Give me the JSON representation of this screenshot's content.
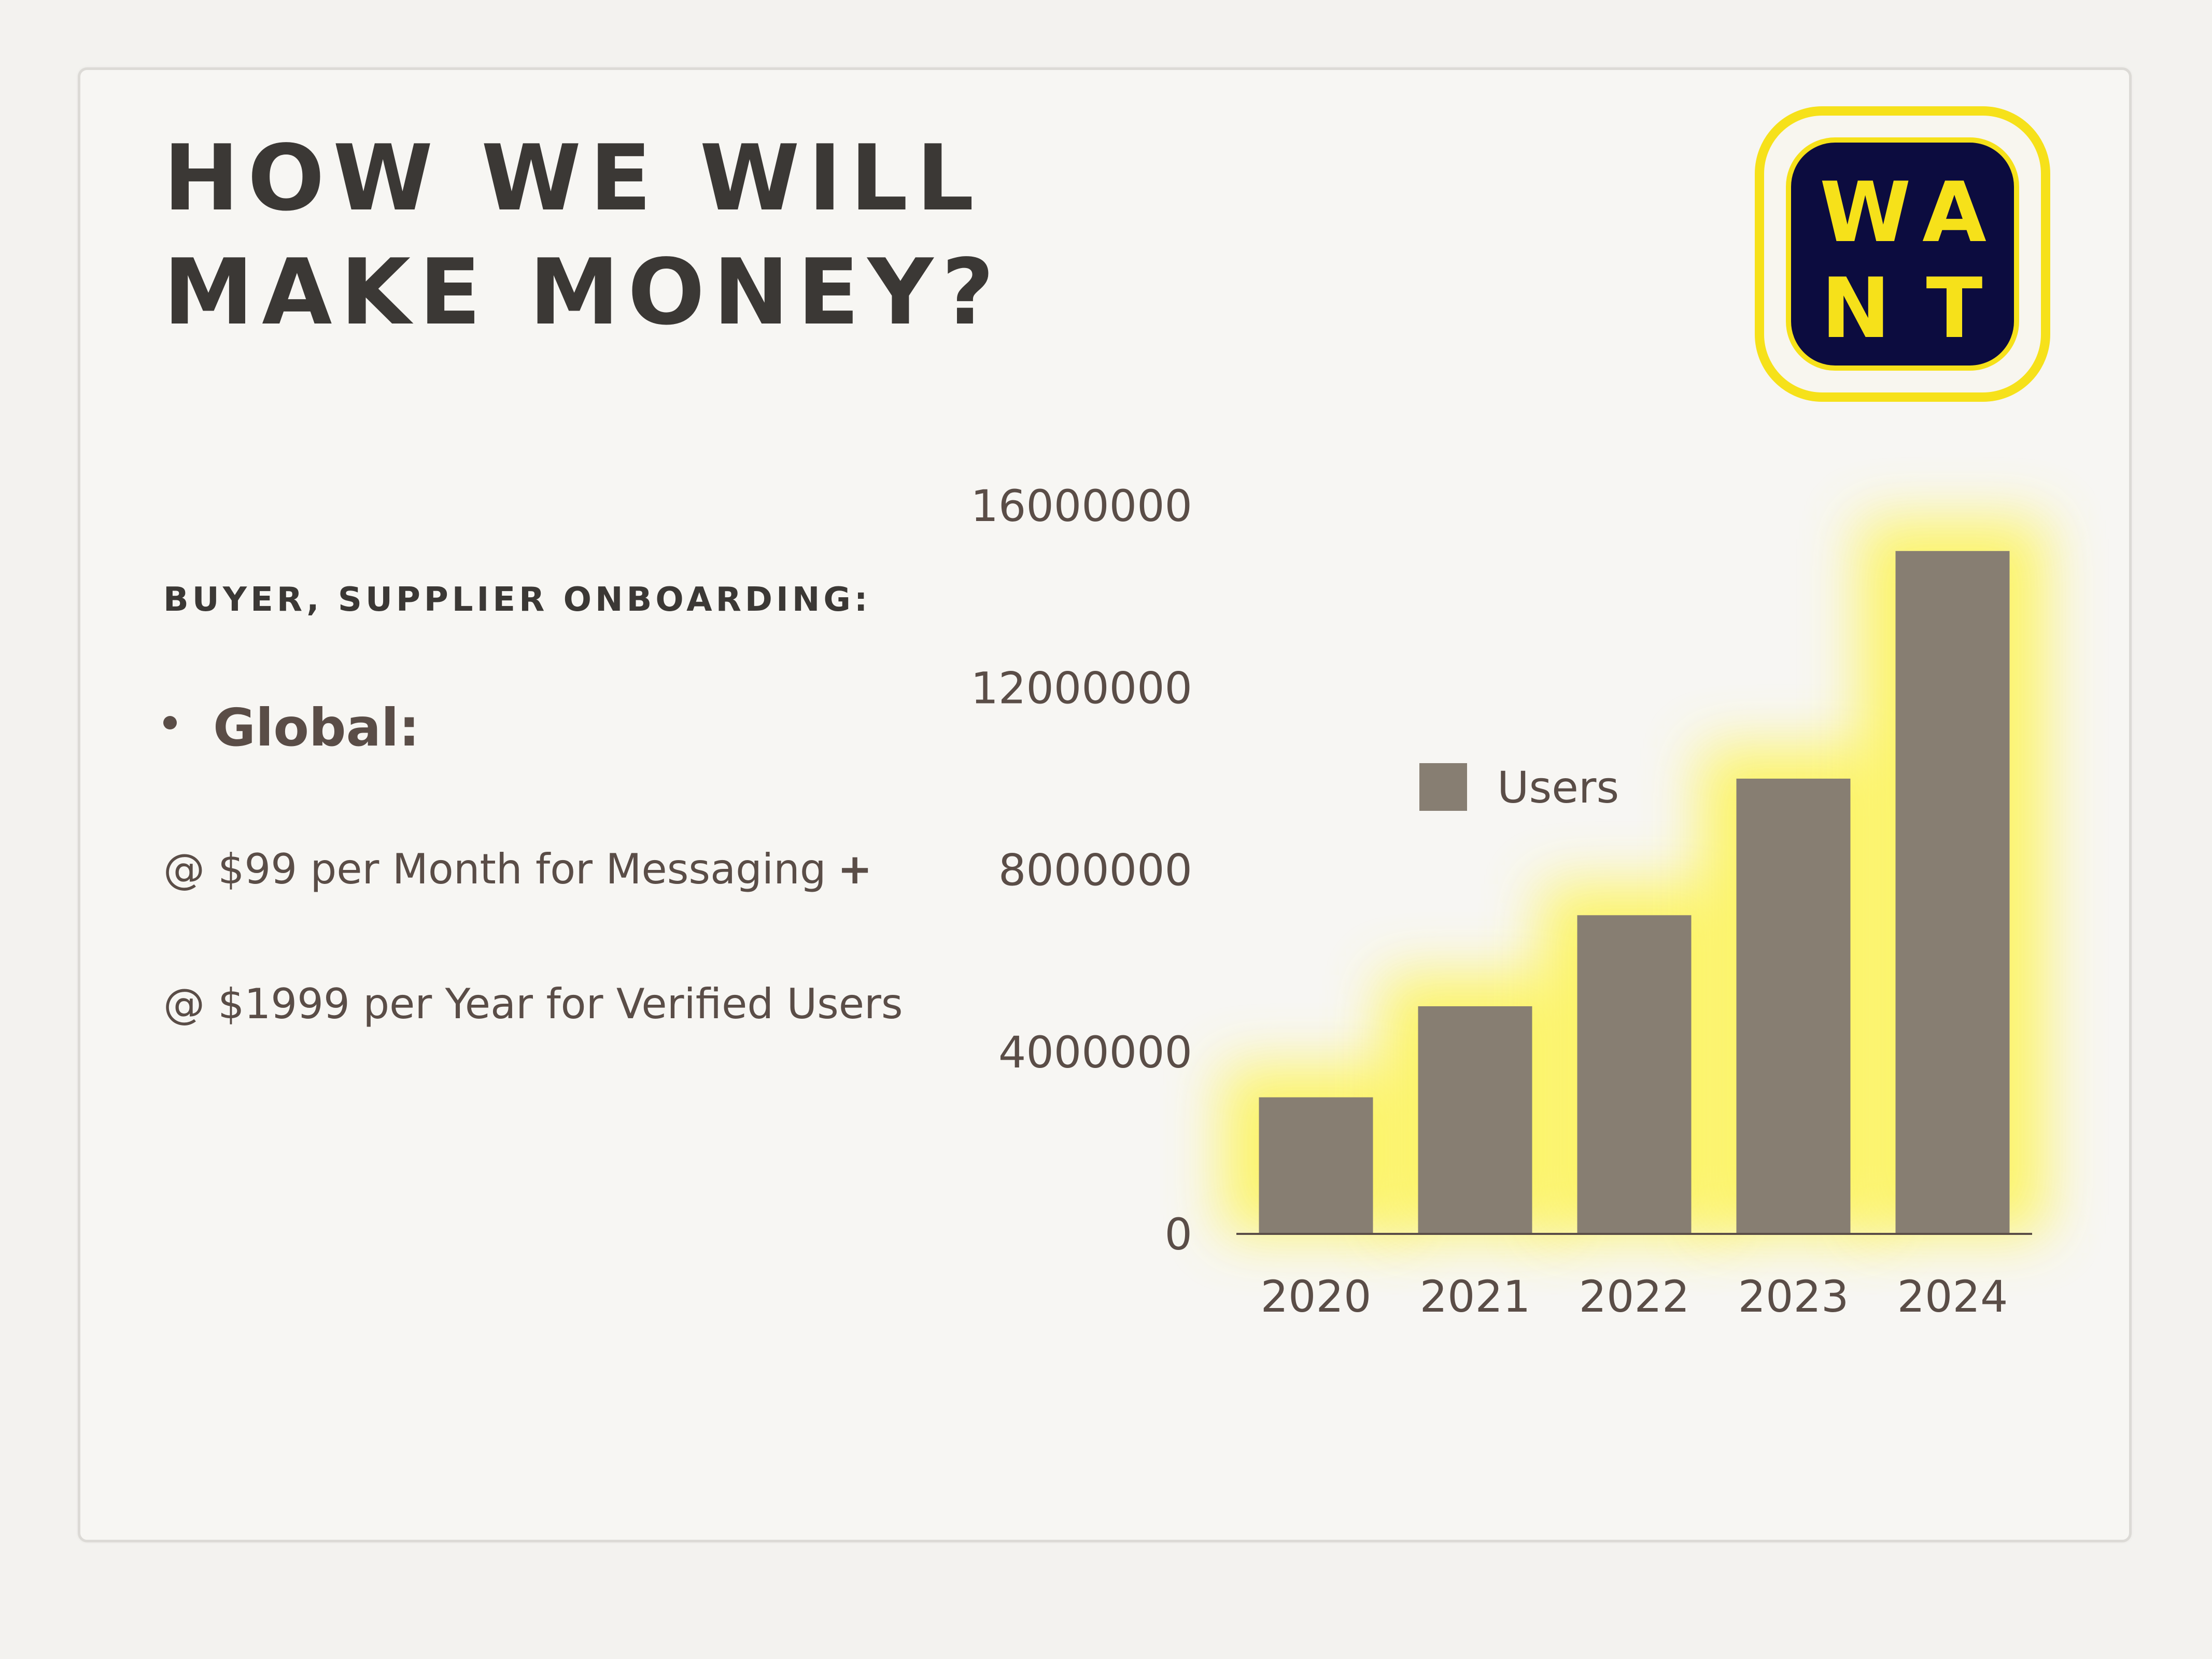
{
  "slide": {
    "title_lines": [
      "HOW WE WILL",
      "MAKE MONEY?"
    ],
    "logo_letters": [
      "W",
      "A",
      "N",
      "T"
    ],
    "subheading": "BUYER, SUPPLIER ONBOARDING:",
    "bullet": "Global:",
    "price_lines": [
      {
        "text": "@ $99 per Month for Messaging",
        "suffix": "+"
      },
      {
        "text": "@ $1999 per Year for Verified Users",
        "suffix": ""
      }
    ]
  },
  "colors": {
    "bar": "#877e72",
    "glow": "#fdf45a",
    "logo_yellow": "#f6e11a",
    "logo_navy": "#0c0c3f",
    "text": "#5a4d47",
    "axis": "#5a4d47"
  },
  "chart_data": {
    "type": "bar",
    "categories": [
      "2020",
      "2021",
      "2022",
      "2023",
      "2024"
    ],
    "series": [
      {
        "name": "Users",
        "values": [
          3000000,
          5000000,
          7000000,
          10000000,
          15000000
        ]
      }
    ],
    "yticks": [
      0,
      4000000,
      8000000,
      12000000,
      16000000
    ],
    "ytick_labels": [
      "0",
      "4000000",
      "8000000",
      "12000000",
      "16000000"
    ],
    "ylim": [
      0,
      16000000
    ],
    "title": "",
    "xlabel": "",
    "ylabel": "",
    "legend": {
      "position": "center-left",
      "entries": [
        "Users"
      ]
    },
    "grid": false
  }
}
